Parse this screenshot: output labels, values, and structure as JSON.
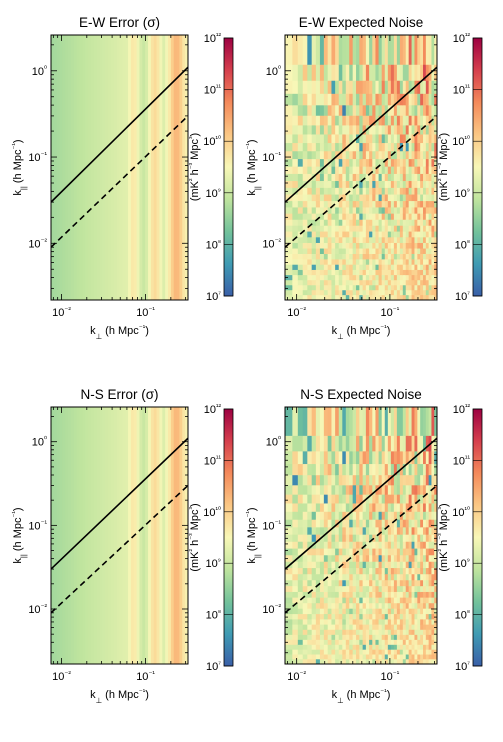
{
  "chart_data": [
    {
      "type": "heatmap",
      "title": "E-W Error (σ)",
      "xlabel": "k⊥ (h Mpc⁻¹)",
      "ylabel": "k|| (h Mpc⁻¹)",
      "xscale": "log",
      "yscale": "log",
      "xlim": [
        0.0075,
        0.32
      ],
      "ylim": [
        0.0022,
        2.6
      ],
      "xticks": [
        "10⁻²",
        "10⁻¹"
      ],
      "yticks": [
        "10⁻²",
        "10⁻¹",
        "10⁰"
      ],
      "pattern": "smooth",
      "lines": [
        {
          "style": "solid",
          "x": [
            0.0075,
            0.32
          ],
          "y": [
            0.03,
            1.1
          ]
        },
        {
          "style": "dashed",
          "x": [
            0.0075,
            0.32
          ],
          "y": [
            0.009,
            0.3
          ]
        }
      ],
      "colorbar": {
        "label": "(mK² h⁻³ Mpc³)",
        "scale": "log",
        "range": [
          10000000.0,
          1000000000000.0
        ],
        "ticks": [
          "10⁷",
          "10⁸",
          "10⁹",
          "10¹⁰",
          "10¹¹",
          "10¹²"
        ]
      }
    },
    {
      "type": "heatmap",
      "title": "E-W Expected Noise",
      "xlabel": "k⊥ (h Mpc⁻¹)",
      "ylabel": "k|| (h Mpc⁻¹)",
      "xscale": "log",
      "yscale": "log",
      "xlim": [
        0.0075,
        0.32
      ],
      "ylim": [
        0.0022,
        2.6
      ],
      "xticks": [
        "10⁻²",
        "10⁻¹"
      ],
      "yticks": [
        "10⁻²",
        "10⁻¹",
        "10⁰"
      ],
      "pattern": "noisy",
      "lines": [
        {
          "style": "solid",
          "x": [
            0.0075,
            0.32
          ],
          "y": [
            0.03,
            1.1
          ]
        },
        {
          "style": "dashed",
          "x": [
            0.0075,
            0.32
          ],
          "y": [
            0.009,
            0.3
          ]
        }
      ],
      "colorbar": {
        "label": "(mK² h⁻³ Mpc³)",
        "scale": "log",
        "range": [
          10000000.0,
          1000000000000.0
        ],
        "ticks": [
          "10⁷",
          "10⁸",
          "10⁹",
          "10¹⁰",
          "10¹¹",
          "10¹²"
        ]
      }
    },
    {
      "type": "heatmap",
      "title": "N-S Error (σ)",
      "xlabel": "k⊥ (h Mpc⁻¹)",
      "ylabel": "k|| (h Mpc⁻¹)",
      "xscale": "log",
      "yscale": "log",
      "xlim": [
        0.0075,
        0.32
      ],
      "ylim": [
        0.0022,
        2.6
      ],
      "xticks": [
        "10⁻²",
        "10⁻¹"
      ],
      "yticks": [
        "10⁻²",
        "10⁻¹",
        "10⁰"
      ],
      "pattern": "smooth",
      "lines": [
        {
          "style": "solid",
          "x": [
            0.0075,
            0.32
          ],
          "y": [
            0.03,
            1.1
          ]
        },
        {
          "style": "dashed",
          "x": [
            0.0075,
            0.32
          ],
          "y": [
            0.009,
            0.3
          ]
        }
      ],
      "colorbar": {
        "label": "(mK² h⁻³ Mpc³)",
        "scale": "log",
        "range": [
          10000000.0,
          1000000000000.0
        ],
        "ticks": [
          "10⁷",
          "10⁸",
          "10⁹",
          "10¹⁰",
          "10¹¹",
          "10¹²"
        ]
      }
    },
    {
      "type": "heatmap",
      "title": "N-S Expected Noise",
      "xlabel": "k⊥ (h Mpc⁻¹)",
      "ylabel": "k|| (h Mpc⁻¹)",
      "xscale": "log",
      "yscale": "log",
      "xlim": [
        0.0075,
        0.32
      ],
      "ylim": [
        0.0022,
        2.6
      ],
      "xticks": [
        "10⁻²",
        "10⁻¹"
      ],
      "yticks": [
        "10⁻²",
        "10⁻¹",
        "10⁰"
      ],
      "pattern": "noisy",
      "lines": [
        {
          "style": "solid",
          "x": [
            0.0075,
            0.32
          ],
          "y": [
            0.03,
            1.1
          ]
        },
        {
          "style": "dashed",
          "x": [
            0.0075,
            0.32
          ],
          "y": [
            0.009,
            0.3
          ]
        }
      ],
      "colorbar": {
        "label": "(mK² h⁻³ Mpc³)",
        "scale": "log",
        "range": [
          10000000.0,
          1000000000000.0
        ],
        "ticks": [
          "10⁷",
          "10⁸",
          "10⁹",
          "10¹⁰",
          "10¹¹",
          "10¹²"
        ]
      }
    }
  ],
  "colormap": [
    "#3a5fa8",
    "#3f9bb3",
    "#73c29b",
    "#bfe49e",
    "#f8f7b7",
    "#fbc784",
    "#f48a5b",
    "#d53f4d",
    "#9d0142"
  ]
}
